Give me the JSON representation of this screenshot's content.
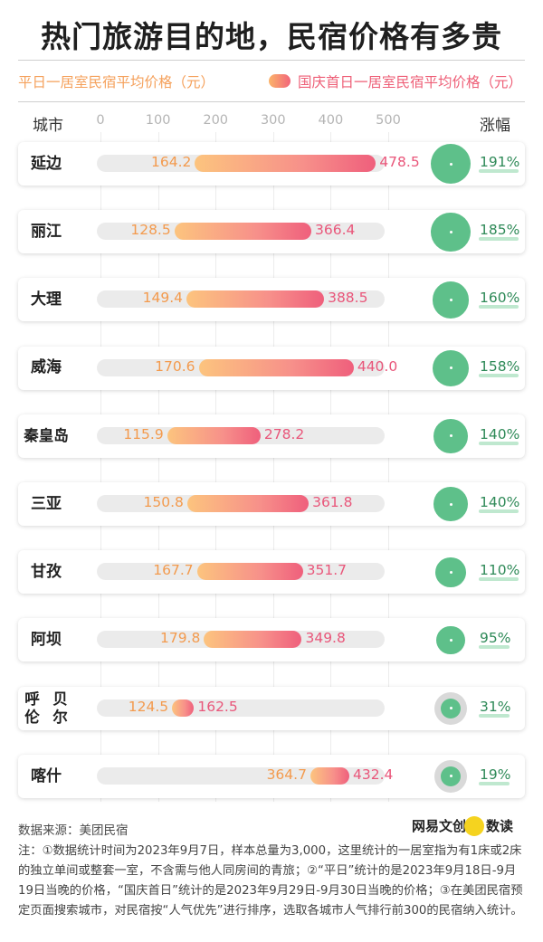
{
  "title": "热门旅游目的地，民宿价格有多贵",
  "legend": {
    "weekday": "平日一居室民宿平均价格（元）",
    "holiday": "国庆首日一居室民宿平均价格（元）"
  },
  "header": {
    "city": "城市",
    "growth": "涨幅"
  },
  "colors": {
    "weekday": "#f39a4d",
    "holiday": "#e9567a",
    "growth": "#5ec08a",
    "track": "#ebebeb"
  },
  "chart_data": {
    "type": "bar",
    "xlim": [
      0,
      500
    ],
    "ticks": [
      "0",
      "100",
      "200",
      "300",
      "400",
      "500"
    ],
    "categories": [
      "延边",
      "丽江",
      "大理",
      "威海",
      "秦皇岛",
      "三亚",
      "甘孜",
      "阿坝",
      "呼伦贝尔",
      "喀什"
    ],
    "category_lines": [
      [
        "延边"
      ],
      [
        "丽江"
      ],
      [
        "大理"
      ],
      [
        "威海"
      ],
      [
        "秦皇岛"
      ],
      [
        "三亚"
      ],
      [
        "甘孜"
      ],
      [
        "阿坝"
      ],
      [
        "呼伦",
        "贝尔"
      ],
      [
        "喀什"
      ]
    ],
    "series": [
      {
        "name": "平日一居室民宿平均价格（元）",
        "values": [
          164.2,
          128.5,
          149.4,
          170.6,
          115.9,
          150.8,
          167.7,
          179.8,
          124.5,
          364.7
        ]
      },
      {
        "name": "国庆首日一居室民宿平均价格（元）",
        "values": [
          478.5,
          366.4,
          388.5,
          440.0,
          278.2,
          361.8,
          351.7,
          349.8,
          162.5,
          432.4
        ]
      }
    ],
    "growth_labels": [
      "191%",
      "185%",
      "160%",
      "158%",
      "140%",
      "140%",
      "110%",
      "95%",
      "31%",
      "19%"
    ],
    "growth_values": [
      191,
      185,
      160,
      158,
      140,
      140,
      110,
      95,
      31,
      19
    ]
  },
  "footer": {
    "source": "数据来源：美团民宿",
    "brand_a": "网易文创",
    "brand_b": "数读",
    "note": "注：①数据统计时间为2023年9月7日，样本总量为3,000，这里统计的一居室指为有1床或2床的独立单间或整套一室，不含需与他人同房间的青旅；②“平日”统计的是2023年9月18日-9月19日当晚的价格，“国庆首日”统计的是2023年9月29日-9月30日当晚的价格；③在美团民宿预定页面搜索城市，对民宿按“人气优先”进行排序，选取各城市人气排行前300的民宿纳入统计。"
  }
}
